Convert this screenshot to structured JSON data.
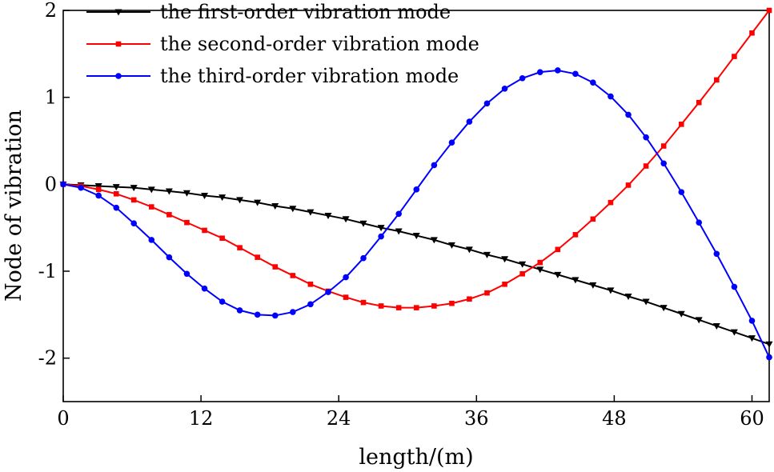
{
  "chart_data": {
    "type": "line",
    "title": "",
    "xlabel": "length/(m)",
    "ylabel": "Node of vibration",
    "xlim": [
      0,
      61.5
    ],
    "ylim": [
      -2.5,
      2
    ],
    "xticks": [
      0,
      12,
      24,
      36,
      48,
      60
    ],
    "yticks": [
      -2,
      -1,
      0,
      1,
      2
    ],
    "grid": false,
    "legend_position": "top-left",
    "series": [
      {
        "name": "the first-order vibration mode",
        "color": "#000000",
        "marker": "triangle-down",
        "x": [
          0,
          1.54,
          3.08,
          4.62,
          6.15,
          7.69,
          9.23,
          10.77,
          12.31,
          13.85,
          15.38,
          16.92,
          18.46,
          20,
          21.54,
          23.08,
          24.62,
          26.15,
          27.69,
          29.23,
          30.77,
          32.31,
          33.85,
          35.38,
          36.92,
          38.46,
          40,
          41.54,
          43.08,
          44.62,
          46.15,
          47.69,
          49.23,
          50.77,
          52.31,
          53.85,
          55.38,
          56.92,
          58.46,
          60,
          61.5
        ],
        "values": [
          0,
          -0.01,
          -0.02,
          -0.03,
          -0.04,
          -0.06,
          -0.08,
          -0.1,
          -0.13,
          -0.15,
          -0.18,
          -0.21,
          -0.25,
          -0.28,
          -0.32,
          -0.36,
          -0.4,
          -0.45,
          -0.5,
          -0.54,
          -0.59,
          -0.64,
          -0.7,
          -0.75,
          -0.81,
          -0.86,
          -0.92,
          -0.98,
          -1.04,
          -1.1,
          -1.16,
          -1.22,
          -1.29,
          -1.35,
          -1.42,
          -1.49,
          -1.56,
          -1.63,
          -1.7,
          -1.77,
          -1.84
        ]
      },
      {
        "name": "the second-order vibration mode",
        "color": "#ff0000",
        "marker": "square",
        "x": [
          0,
          1.54,
          3.08,
          4.62,
          6.15,
          7.69,
          9.23,
          10.77,
          12.31,
          13.85,
          15.38,
          16.92,
          18.46,
          20,
          21.54,
          23.08,
          24.62,
          26.15,
          27.69,
          29.23,
          30.77,
          32.31,
          33.85,
          35.38,
          36.92,
          38.46,
          40,
          41.54,
          43.08,
          44.62,
          46.15,
          47.69,
          49.23,
          50.77,
          52.31,
          53.85,
          55.38,
          56.92,
          58.46,
          60,
          61.5
        ],
        "values": [
          0,
          -0.02,
          -0.06,
          -0.11,
          -0.18,
          -0.26,
          -0.35,
          -0.44,
          -0.53,
          -0.62,
          -0.73,
          -0.84,
          -0.95,
          -1.05,
          -1.15,
          -1.23,
          -1.3,
          -1.36,
          -1.4,
          -1.42,
          -1.42,
          -1.4,
          -1.37,
          -1.32,
          -1.25,
          -1.15,
          -1.03,
          -0.9,
          -0.75,
          -0.58,
          -0.4,
          -0.21,
          -0.01,
          0.21,
          0.44,
          0.69,
          0.94,
          1.2,
          1.47,
          1.74,
          2.0
        ]
      },
      {
        "name": "the third-order vibration mode",
        "color": "#0000ff",
        "marker": "circle",
        "x": [
          0,
          1.54,
          3.08,
          4.62,
          6.15,
          7.69,
          9.23,
          10.77,
          12.31,
          13.85,
          15.38,
          16.92,
          18.46,
          20,
          21.54,
          23.08,
          24.62,
          26.15,
          27.69,
          29.23,
          30.77,
          32.31,
          33.85,
          35.38,
          36.92,
          38.46,
          40,
          41.54,
          43.08,
          44.62,
          46.15,
          47.69,
          49.23,
          50.77,
          52.31,
          53.85,
          55.38,
          56.92,
          58.46,
          60,
          61.5
        ],
        "values": [
          0,
          -0.04,
          -0.13,
          -0.27,
          -0.45,
          -0.64,
          -0.84,
          -1.03,
          -1.2,
          -1.35,
          -1.45,
          -1.5,
          -1.51,
          -1.47,
          -1.38,
          -1.24,
          -1.07,
          -0.85,
          -0.6,
          -0.34,
          -0.06,
          0.22,
          0.48,
          0.72,
          0.93,
          1.1,
          1.22,
          1.29,
          1.31,
          1.27,
          1.17,
          1.01,
          0.8,
          0.54,
          0.24,
          -0.09,
          -0.44,
          -0.8,
          -1.18,
          -1.57,
          -1.99
        ]
      }
    ]
  }
}
